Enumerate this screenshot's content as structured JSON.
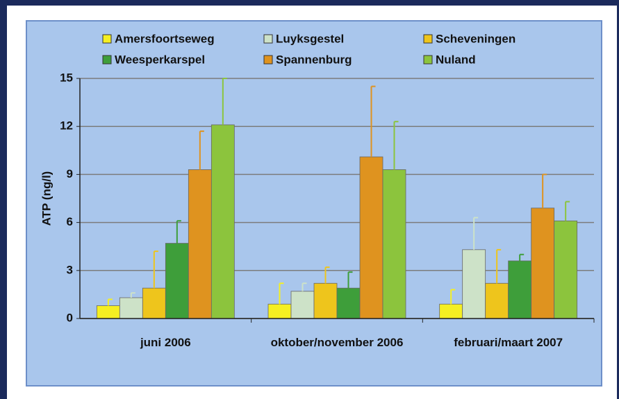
{
  "chart_data": {
    "type": "bar",
    "y_label": "ATP (ng/l)",
    "categories": [
      "juni 2006",
      "oktober/november 2006",
      "februari/maart 2007"
    ],
    "series": [
      {
        "name": "Amersfoortseweg",
        "color": "#f5ef22",
        "values": [
          0.8,
          0.9,
          0.9
        ],
        "errors": [
          0.4,
          1.3,
          0.9
        ]
      },
      {
        "name": "Luyksgestel",
        "color": "#cde2c8",
        "values": [
          1.3,
          1.7,
          4.3
        ],
        "errors": [
          0.3,
          0.5,
          2.0
        ]
      },
      {
        "name": "Scheveningen",
        "color": "#eec51c",
        "values": [
          1.9,
          2.2,
          2.2
        ],
        "errors": [
          2.3,
          1.0,
          2.1
        ]
      },
      {
        "name": "Weesperkarspel",
        "color": "#3e9e3a",
        "values": [
          4.7,
          1.9,
          3.6
        ],
        "errors": [
          1.4,
          1.0,
          0.4
        ]
      },
      {
        "name": "Spannenburg",
        "color": "#df931f",
        "values": [
          9.3,
          10.1,
          6.9
        ],
        "errors": [
          2.4,
          4.4,
          2.1
        ]
      },
      {
        "name": "Nuland",
        "color": "#8cc43d",
        "values": [
          12.1,
          9.3,
          6.1
        ],
        "errors": [
          2.9,
          3.0,
          1.2
        ]
      }
    ],
    "ylim": [
      0,
      15
    ],
    "yticks": [
      0,
      3,
      6,
      9,
      12,
      15
    ],
    "grid": true
  }
}
